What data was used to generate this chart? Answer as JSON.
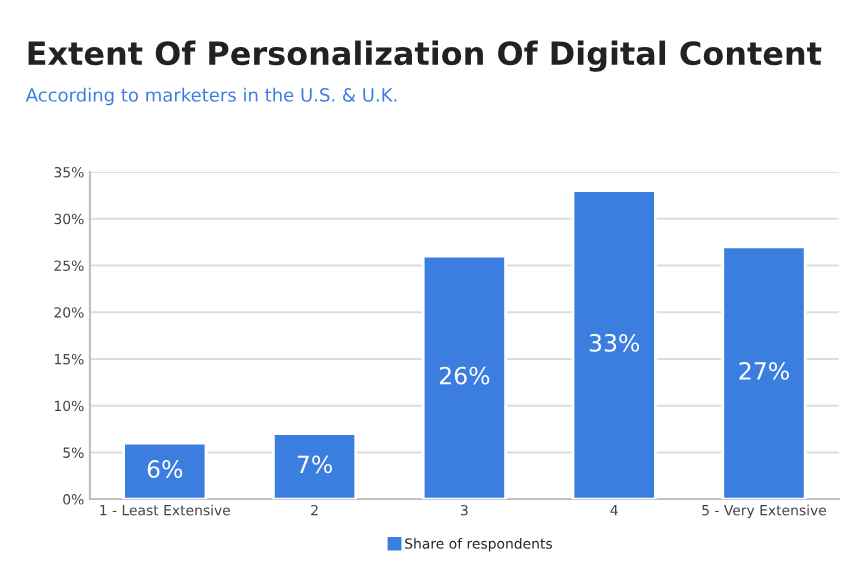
{
  "chart_data": {
    "type": "bar",
    "title": "Extent Of Personalization Of Digital Content",
    "subtitle": "According to marketers in the U.S. & U.K.",
    "categories": [
      "1 - Least Extensive",
      "2",
      "3",
      "4",
      "5 - Very Extensive"
    ],
    "series": [
      {
        "name": "Share of respondents",
        "color": "#3c7ee0",
        "values": [
          6,
          7,
          26,
          33,
          27
        ],
        "value_labels": [
          "6%",
          "7%",
          "26%",
          "33%",
          "27%"
        ]
      }
    ],
    "ylim": [
      0,
      35
    ],
    "yticks": [
      {
        "value": 0,
        "label": "0%"
      },
      {
        "value": 5,
        "label": "5%"
      },
      {
        "value": 10,
        "label": "10%"
      },
      {
        "value": 15,
        "label": "15%"
      },
      {
        "value": 20,
        "label": "20%"
      },
      {
        "value": 25,
        "label": "25%"
      },
      {
        "value": 30,
        "label": "30%"
      },
      {
        "value": 35,
        "label": "35%"
      }
    ],
    "grid": "y",
    "legend": "bottom"
  }
}
